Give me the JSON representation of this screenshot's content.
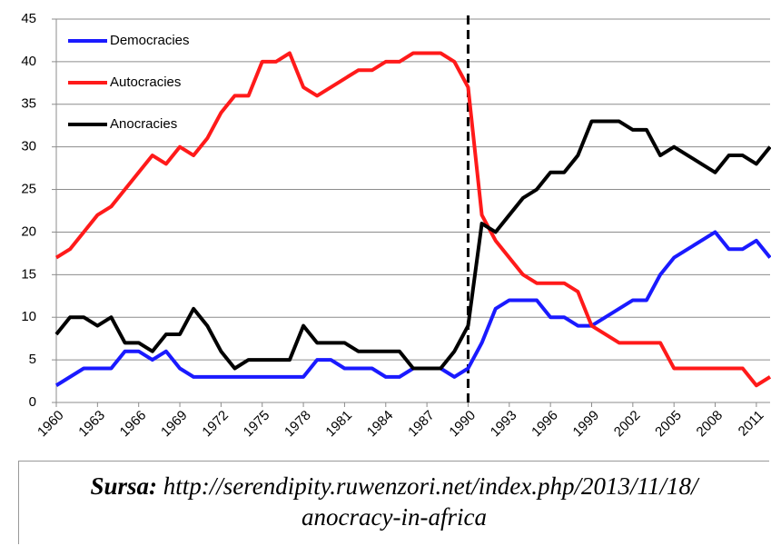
{
  "chart_data": {
    "type": "line",
    "x": [
      1960,
      1961,
      1962,
      1963,
      1964,
      1965,
      1966,
      1967,
      1968,
      1969,
      1970,
      1971,
      1972,
      1973,
      1974,
      1975,
      1976,
      1977,
      1978,
      1979,
      1980,
      1981,
      1982,
      1983,
      1984,
      1985,
      1986,
      1987,
      1988,
      1989,
      1990,
      1991,
      1992,
      1993,
      1994,
      1995,
      1996,
      1997,
      1998,
      1999,
      2000,
      2001,
      2002,
      2003,
      2004,
      2005,
      2006,
      2007,
      2008,
      2009,
      2010,
      2011,
      2012
    ],
    "series": [
      {
        "name": "Democracies",
        "color": "#1a1aff",
        "values": [
          2,
          3,
          4,
          4,
          4,
          6,
          6,
          5,
          6,
          4,
          3,
          3,
          3,
          3,
          3,
          3,
          3,
          3,
          3,
          5,
          5,
          4,
          4,
          4,
          3,
          3,
          4,
          4,
          4,
          3,
          4,
          7,
          11,
          12,
          12,
          12,
          10,
          10,
          9,
          9,
          10,
          11,
          12,
          12,
          15,
          17,
          18,
          19,
          20,
          18,
          18,
          19,
          17
        ]
      },
      {
        "name": "Autocracies",
        "color": "#ff1a1a",
        "values": [
          17,
          18,
          20,
          22,
          23,
          25,
          27,
          29,
          28,
          30,
          29,
          31,
          34,
          36,
          36,
          40,
          40,
          41,
          37,
          36,
          37,
          38,
          39,
          39,
          40,
          40,
          41,
          41,
          41,
          40,
          37,
          22,
          19,
          17,
          15,
          14,
          14,
          14,
          13,
          9,
          8,
          7,
          7,
          7,
          7,
          4,
          4,
          4,
          4,
          4,
          4,
          2,
          3
        ]
      },
      {
        "name": "Anocracies",
        "color": "#000000",
        "values": [
          8,
          10,
          10,
          9,
          10,
          7,
          7,
          6,
          8,
          8,
          11,
          9,
          6,
          4,
          5,
          5,
          5,
          5,
          9,
          7,
          7,
          7,
          6,
          6,
          6,
          6,
          4,
          4,
          4,
          6,
          9,
          21,
          20,
          22,
          24,
          25,
          27,
          27,
          29,
          33,
          33,
          33,
          32,
          32,
          29,
          30,
          29,
          28,
          27,
          29,
          29,
          28,
          30
        ]
      }
    ],
    "xlim": [
      1960,
      2012
    ],
    "xticks": [
      1960,
      1963,
      1966,
      1969,
      1972,
      1975,
      1978,
      1981,
      1984,
      1987,
      1990,
      1993,
      1996,
      1999,
      2002,
      2005,
      2008,
      2011
    ],
    "ylim": [
      0,
      45
    ],
    "yticks": [
      0,
      5,
      10,
      15,
      20,
      25,
      30,
      35,
      40,
      45
    ],
    "grid": true,
    "legend": "upper-left",
    "reference_line_x": 1990,
    "source_label": "Sursa:",
    "source_lines": [
      "http://serendipity.ruwenzori.net/index.php/2013/11/18/",
      "anocracy-in-africa"
    ]
  }
}
